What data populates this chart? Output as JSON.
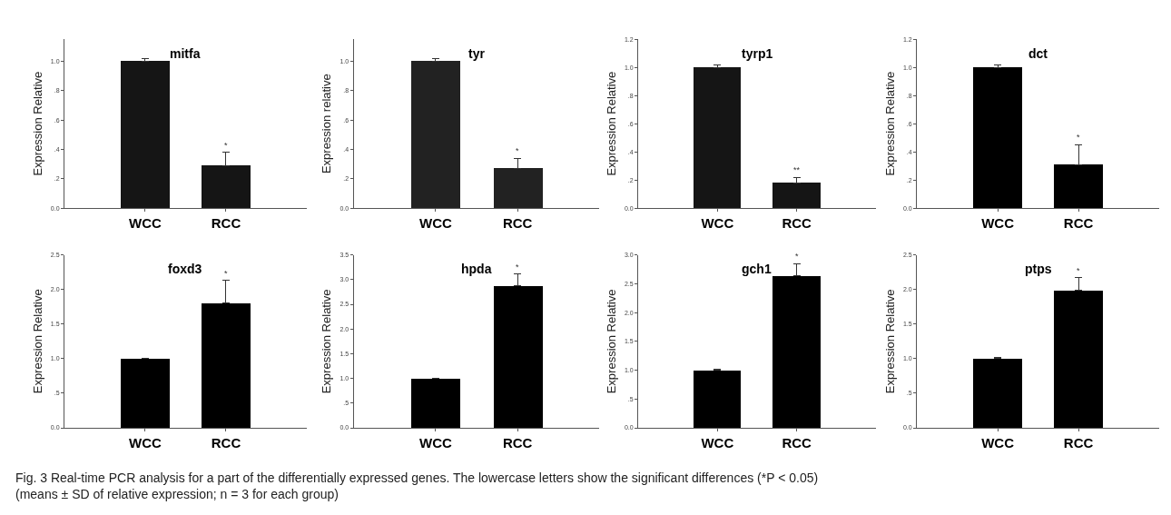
{
  "chart_data": [
    {
      "type": "bar",
      "title": "mitfa",
      "ylabel": "Expression Relative",
      "categories": [
        "WCC",
        "RCC"
      ],
      "values": [
        1.0,
        0.29
      ],
      "errors": [
        [
          1.0,
          1.02
        ],
        [
          0.29,
          0.38
        ]
      ],
      "color": "#151515",
      "ylim": [
        0,
        1.15
      ],
      "yticks": [
        {
          "value": 0,
          "label": "0.0"
        },
        {
          "value": 0.2,
          "label": ".2"
        },
        {
          "value": 0.4,
          "label": ".4"
        },
        {
          "value": 0.6,
          "label": ".6"
        },
        {
          "value": 0.8,
          "label": ".8"
        },
        {
          "value": 1.0,
          "label": "1.0"
        }
      ],
      "annotations": [
        {
          "text": "*",
          "x": "RCC",
          "y": 0.38
        }
      ]
    },
    {
      "type": "bar",
      "title": "tyr",
      "ylabel": "Expression relative",
      "categories": [
        "WCC",
        "RCC"
      ],
      "values": [
        1.0,
        0.27
      ],
      "errors": [
        [
          1.0,
          1.02
        ],
        [
          0.27,
          0.34
        ]
      ],
      "color": "#222222",
      "ylim": [
        0,
        1.15
      ],
      "yticks": [
        {
          "value": 0,
          "label": "0.0"
        },
        {
          "value": 0.2,
          "label": ".2"
        },
        {
          "value": 0.4,
          "label": ".4"
        },
        {
          "value": 0.6,
          "label": ".6"
        },
        {
          "value": 0.8,
          "label": ".8"
        },
        {
          "value": 1.0,
          "label": "1.0"
        }
      ],
      "annotations": [
        {
          "text": "*",
          "x": "RCC",
          "y": 0.34
        }
      ]
    },
    {
      "type": "bar",
      "title": "tyrp1",
      "ylabel": "Expression Relative",
      "categories": [
        "WCC",
        "RCC"
      ],
      "values": [
        1.0,
        0.18
      ],
      "errors": [
        [
          1.0,
          1.02
        ],
        [
          0.18,
          0.22
        ]
      ],
      "color": "#151515",
      "ylim": [
        0,
        1.2
      ],
      "yticks": [
        {
          "value": 0,
          "label": "0.0"
        },
        {
          "value": 0.2,
          "label": ".2"
        },
        {
          "value": 0.4,
          "label": ".4"
        },
        {
          "value": 0.6,
          "label": ".6"
        },
        {
          "value": 0.8,
          "label": ".8"
        },
        {
          "value": 1.0,
          "label": "1.0"
        },
        {
          "value": 1.2,
          "label": "1.2"
        }
      ],
      "annotations": [
        {
          "text": "**",
          "x": "RCC",
          "y": 0.22
        }
      ]
    },
    {
      "type": "bar",
      "title": "dct",
      "ylabel": "Expression Relative",
      "categories": [
        "WCC",
        "RCC"
      ],
      "values": [
        1.0,
        0.31
      ],
      "errors": [
        [
          1.0,
          1.02
        ],
        [
          0.31,
          0.45
        ]
      ],
      "color": "#000000",
      "ylim": [
        0,
        1.2
      ],
      "yticks": [
        {
          "value": 0,
          "label": "0.0"
        },
        {
          "value": 0.2,
          "label": ".2"
        },
        {
          "value": 0.4,
          "label": ".4"
        },
        {
          "value": 0.6,
          "label": ".6"
        },
        {
          "value": 0.8,
          "label": ".8"
        },
        {
          "value": 1.0,
          "label": "1.0"
        },
        {
          "value": 1.2,
          "label": "1.2"
        }
      ],
      "annotations": [
        {
          "text": "*",
          "x": "RCC",
          "y": 0.45
        }
      ]
    },
    {
      "type": "bar",
      "title": "foxd3",
      "ylabel": "Expression Relative",
      "categories": [
        "WCC",
        "RCC"
      ],
      "values": [
        1.0,
        1.81
      ],
      "errors": [
        [
          1.0,
          1.01
        ],
        [
          1.81,
          2.13
        ]
      ],
      "color": "#000000",
      "ylim": [
        0,
        2.5
      ],
      "yticks": [
        {
          "value": 0,
          "label": "0.0"
        },
        {
          "value": 0.5,
          "label": ".5"
        },
        {
          "value": 1.0,
          "label": "1.0"
        },
        {
          "value": 1.5,
          "label": "1.5"
        },
        {
          "value": 2.0,
          "label": "2.0"
        },
        {
          "value": 2.5,
          "label": "2.5"
        }
      ],
      "annotations": [
        {
          "text": "*",
          "x": "RCC",
          "y": 2.13
        }
      ]
    },
    {
      "type": "bar",
      "title": "hpda",
      "ylabel": "Expression Relative",
      "categories": [
        "WCC",
        "RCC"
      ],
      "values": [
        1.0,
        2.88
      ],
      "errors": [
        [
          1.0,
          1.01
        ],
        [
          2.88,
          3.11
        ]
      ],
      "color": "#000000",
      "ylim": [
        0,
        3.5
      ],
      "yticks": [
        {
          "value": 0,
          "label": "0.0"
        },
        {
          "value": 0.5,
          "label": ".5"
        },
        {
          "value": 1.0,
          "label": "1.0"
        },
        {
          "value": 1.5,
          "label": "1.5"
        },
        {
          "value": 2.0,
          "label": "2.0"
        },
        {
          "value": 2.5,
          "label": "2.5"
        },
        {
          "value": 3.0,
          "label": "3.0"
        },
        {
          "value": 3.5,
          "label": "3.5"
        }
      ],
      "annotations": [
        {
          "text": "*",
          "x": "RCC",
          "y": 3.11
        }
      ]
    },
    {
      "type": "bar",
      "title": "gch1",
      "ylabel": "Expression Relative",
      "categories": [
        "WCC",
        "RCC"
      ],
      "values": [
        1.0,
        2.64
      ],
      "errors": [
        [
          1.0,
          1.01
        ],
        [
          2.64,
          2.85
        ]
      ],
      "color": "#000000",
      "ylim": [
        0,
        3.0
      ],
      "yticks": [
        {
          "value": 0,
          "label": "0.0"
        },
        {
          "value": 0.5,
          "label": ".5"
        },
        {
          "value": 1.0,
          "label": "1.0"
        },
        {
          "value": 1.5,
          "label": "1.5"
        },
        {
          "value": 2.0,
          "label": "2.0"
        },
        {
          "value": 2.5,
          "label": "2.5"
        },
        {
          "value": 3.0,
          "label": "3.0"
        }
      ],
      "annotations": [
        {
          "text": "*",
          "x": "RCC",
          "y": 2.85
        }
      ]
    },
    {
      "type": "bar",
      "title": "ptps",
      "ylabel": "Expression Relative",
      "categories": [
        "WCC",
        "RCC"
      ],
      "values": [
        1.0,
        1.99
      ],
      "errors": [
        [
          1.0,
          1.02
        ],
        [
          1.99,
          2.17
        ]
      ],
      "color": "#000000",
      "ylim": [
        0,
        2.5
      ],
      "yticks": [
        {
          "value": 0,
          "label": "0.0"
        },
        {
          "value": 0.5,
          "label": ".5"
        },
        {
          "value": 1.0,
          "label": "1.0"
        },
        {
          "value": 1.5,
          "label": "1.5"
        },
        {
          "value": 2.0,
          "label": "2.0"
        },
        {
          "value": 2.5,
          "label": "2.5"
        }
      ],
      "annotations": [
        {
          "text": "*",
          "x": "RCC",
          "y": 2.17
        },
        "Fig. 3 Real-time PCR analysis for a part of the differentially expressed genes. The lowercase letters show the significant differences (*P < 0.05)\n(means ± SD of relative expression; n = 3 for each group)"
      ]
    }
  ]
}
